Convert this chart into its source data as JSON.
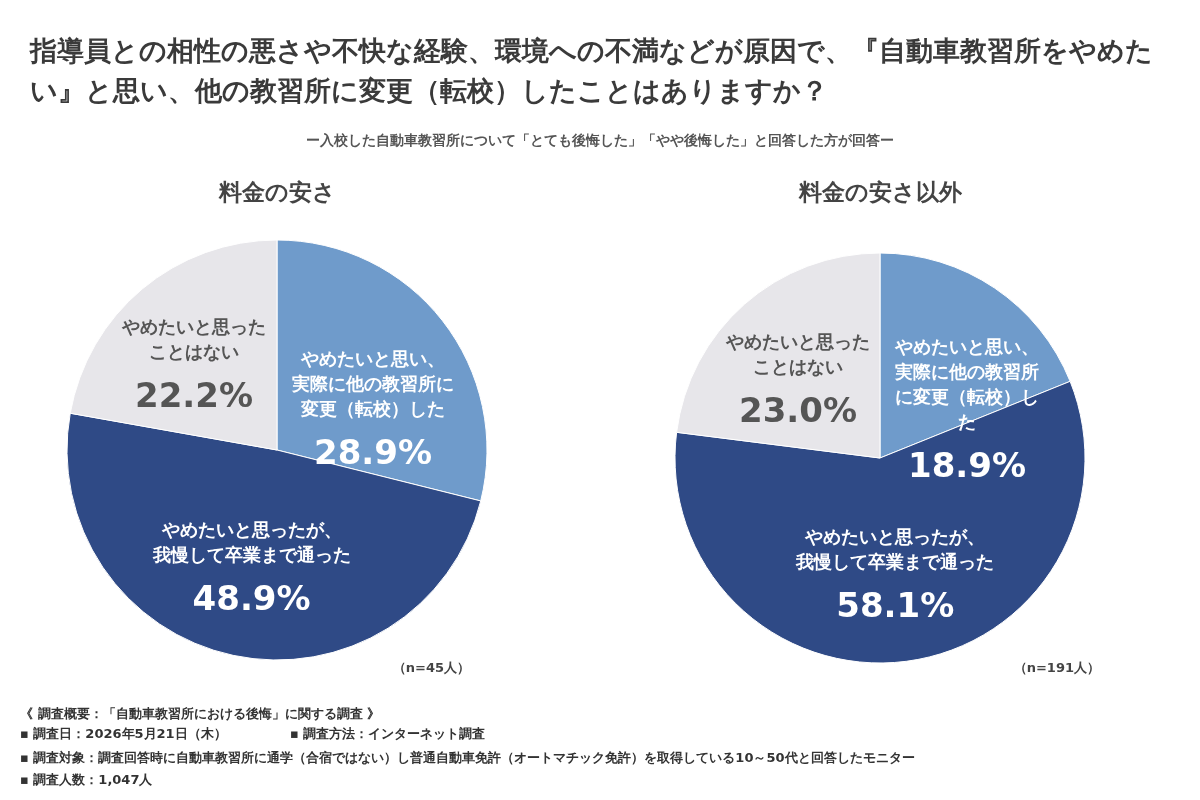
{
  "chart_data": [
    {
      "type": "pie",
      "title": "指導員との相性の悪さや不快な経験、環境への不満などが原因で、『自動車教習所をやめたい』と思い、他の教習所に変更（転校）したことはありますか？",
      "subtitle": "ー入校した自動車教習所について「とても後悔した」「やや後悔した」と回答した方が回答ー",
      "xlabel": "料金の安さ",
      "categories": [
        "やめたいと思い、実際に他の教習所に変更（転校）した",
        "やめたいと思ったが、我慢して卒業まで通った",
        "やめたいと思ったことはない"
      ],
      "values": [
        28.9,
        48.9,
        22.2
      ],
      "value_labels": [
        "28.9%",
        "48.9%",
        "22.2%"
      ],
      "colors": [
        "#6f9bcb",
        "#2f4a86",
        "#e7e6ea"
      ],
      "annotations": [
        "（n=45人）",
        "《 調査概要：「自動車教習所における後悔」に関する調査 》",
        "▪ 調査日：2026年5月21日（木）",
        "▪ 調査方法：インターネット調査",
        "▪ 調査対象：調査回答時に自動車教習所に通学（合宿ではない）し普通自動車免許（オートマチック免許）を取得している10～50代と回答したモニター",
        "▪ 調査人数：1,047人"
      ]
    },
    {
      "type": "pie",
      "xlabel": "料金の安さ以外",
      "categories": [
        "やめたいと思い、実際に他の教習所に変更（転校）した",
        "やめたいと思ったが、我慢して卒業まで通った",
        "やめたいと思ったことはない"
      ],
      "values": [
        18.9,
        58.1,
        23.0
      ],
      "value_labels": [
        "18.9%",
        "58.1%",
        "23.0%"
      ],
      "colors": [
        "#6f9bcb",
        "#2f4a86",
        "#e7e6ea"
      ],
      "annotations": [
        "（n=191人）"
      ]
    }
  ]
}
